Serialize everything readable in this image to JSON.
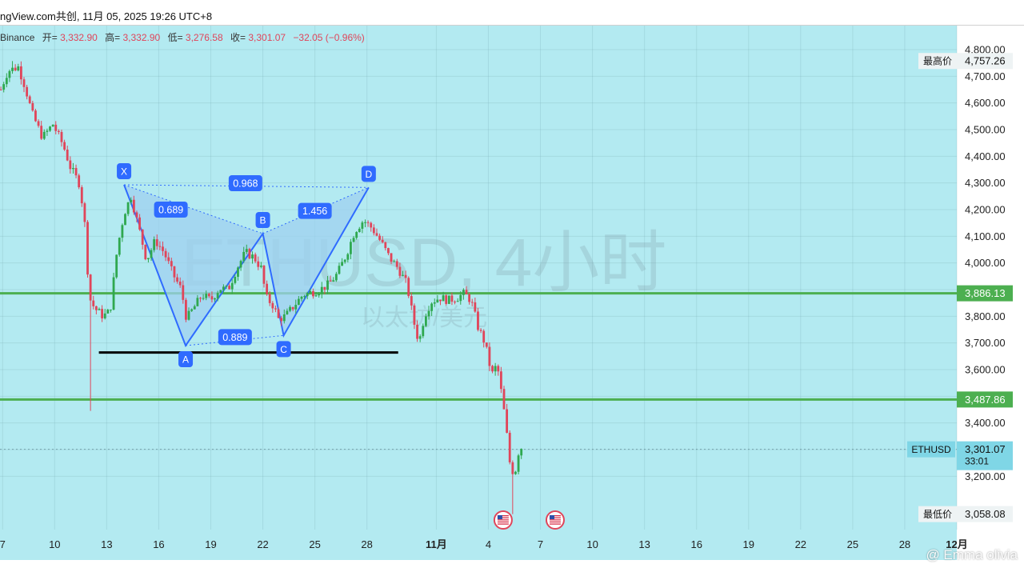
{
  "header": {
    "title": "ngView.com共创, 11月 05, 2025 19:26 UTC+8"
  },
  "colors": {
    "background": "#b3eaf1",
    "up": "#2fa84f",
    "down": "#e0455a",
    "pattern_fill": "#9fd0ef",
    "pattern_line": "#2f6bff",
    "green_line": "#4caf50",
    "black_line": "#000000",
    "label_bg": "#2f6bff"
  },
  "legend": {
    "exchange": "Binance",
    "open_label": "开=",
    "open": "3,332.90",
    "high_label": "高=",
    "high": "3,332.90",
    "low_label": "低=",
    "low": "3,276.58",
    "close_label": "收=",
    "close": "3,301.07",
    "change": "−32.05 (−0.96%)"
  },
  "watermark": {
    "symbol": "ETHUSD, 4小时",
    "name": "以太坊/美元"
  },
  "footer": {
    "handle": "@ Emma olivia"
  },
  "chart_data": {
    "type": "candlestick",
    "symbol": "ETHUSD",
    "interval": "4小时",
    "y_ticks": [
      3200,
      3400,
      3600,
      3700,
      3800,
      4000,
      4100,
      4200,
      4300,
      4400,
      4500,
      4600,
      4700,
      4800
    ],
    "y_tick_labels": [
      "3,200.00",
      "3,400.00",
      "3,600.00",
      "3,700.00",
      "3,800.00",
      "4,000.00",
      "4,100.00",
      "4,200.00",
      "4,300.00",
      "4,400.00",
      "4,500.00",
      "4,600.00",
      "4,700.00",
      "4,800.00"
    ],
    "ylim": [
      3000,
      4890
    ],
    "x_ticks": [
      "7",
      "10",
      "13",
      "16",
      "19",
      "22",
      "25",
      "28",
      "11月",
      "4",
      "7",
      "10",
      "13",
      "16",
      "19",
      "22",
      "25",
      "28",
      "12月"
    ],
    "x_tick_days": [
      7,
      10,
      13,
      16,
      19,
      22,
      25,
      28,
      32,
      35,
      38,
      41,
      44,
      47,
      50,
      53,
      56,
      59,
      62
    ],
    "xlim": [
      6.85,
      62.0
    ],
    "price_labels": [
      {
        "label": "最高价",
        "price": 4757.26,
        "value": "4,757.26",
        "style": "plain"
      },
      {
        "label": "",
        "price": 3886.13,
        "value": "3,886.13",
        "style": "green"
      },
      {
        "label": "",
        "price": 3487.86,
        "value": "3,487.86",
        "style": "green"
      },
      {
        "label": "ETHUSD",
        "price": 3301.07,
        "value": "3,301.07",
        "sub": "33:01",
        "style": "current"
      },
      {
        "label": "最低价",
        "price": 3058.08,
        "value": "3,058.08",
        "style": "plain"
      }
    ],
    "horizontal_lines": [
      {
        "price": 3886.13,
        "color": "green"
      },
      {
        "price": 3487.86,
        "color": "green"
      }
    ],
    "support_segment": {
      "price": 3664,
      "x_start_day": 12.55,
      "x_end_day": 29.8
    },
    "current_price": 3301.07,
    "harmonic_pattern": {
      "points": [
        {
          "name": "X",
          "day": 14.0,
          "price": 4293,
          "label_pos": "above"
        },
        {
          "name": "A",
          "day": 17.55,
          "price": 3690,
          "label_pos": "below"
        },
        {
          "name": "B",
          "day": 22.0,
          "price": 4110,
          "label_pos": "above"
        },
        {
          "name": "C",
          "day": 23.2,
          "price": 3728,
          "label_pos": "below"
        },
        {
          "name": "D",
          "day": 28.1,
          "price": 4283,
          "label_pos": "above"
        }
      ],
      "ratios": [
        {
          "value": "0.689",
          "day": 16.7,
          "price": 4200
        },
        {
          "value": "0.968",
          "day": 21.0,
          "price": 4299
        },
        {
          "value": "1.456",
          "day": 25.0,
          "price": 4195
        },
        {
          "value": "0.889",
          "day": 20.4,
          "price": 3722
        }
      ]
    },
    "events": [
      {
        "day": 35.85,
        "icon": "us-flag"
      },
      {
        "day": 38.85,
        "icon": "us-flag"
      }
    ],
    "anchors": [
      [
        6.9,
        4650
      ],
      [
        7.3,
        4720
      ],
      [
        7.9,
        4735
      ],
      [
        8.3,
        4660
      ],
      [
        8.7,
        4560
      ],
      [
        9.3,
        4470
      ],
      [
        9.9,
        4520
      ],
      [
        10.5,
        4440
      ],
      [
        10.9,
        4360
      ],
      [
        11.4,
        4300
      ],
      [
        11.7,
        4180
      ],
      [
        12.0,
        3870
      ],
      [
        12.3,
        3830
      ],
      [
        12.8,
        3800
      ],
      [
        13.2,
        3820
      ],
      [
        13.6,
        4050
      ],
      [
        14.0,
        4185
      ],
      [
        14.4,
        4250
      ],
      [
        14.8,
        4145
      ],
      [
        15.3,
        4010
      ],
      [
        15.8,
        4085
      ],
      [
        16.3,
        4040
      ],
      [
        16.8,
        3960
      ],
      [
        17.3,
        3900
      ],
      [
        17.6,
        3790
      ],
      [
        18.0,
        3830
      ],
      [
        18.5,
        3880
      ],
      [
        19.0,
        3860
      ],
      [
        19.5,
        3905
      ],
      [
        20.0,
        3900
      ],
      [
        20.5,
        3980
      ],
      [
        21.0,
        4040
      ],
      [
        21.5,
        4020
      ],
      [
        21.9,
        3980
      ],
      [
        22.2,
        3870
      ],
      [
        22.6,
        3840
      ],
      [
        22.9,
        3790
      ],
      [
        23.3,
        3800
      ],
      [
        23.8,
        3840
      ],
      [
        24.3,
        3880
      ],
      [
        24.8,
        3890
      ],
      [
        25.3,
        3900
      ],
      [
        25.8,
        3920
      ],
      [
        26.3,
        3960
      ],
      [
        26.8,
        4030
      ],
      [
        27.3,
        4120
      ],
      [
        27.8,
        4160
      ],
      [
        28.3,
        4130
      ],
      [
        28.8,
        4080
      ],
      [
        29.3,
        4020
      ],
      [
        29.8,
        3980
      ],
      [
        30.3,
        3920
      ],
      [
        30.7,
        3780
      ],
      [
        31.0,
        3700
      ],
      [
        31.3,
        3800
      ],
      [
        31.7,
        3855
      ],
      [
        32.2,
        3870
      ],
      [
        32.7,
        3860
      ],
      [
        33.2,
        3870
      ],
      [
        33.6,
        3885
      ],
      [
        34.0,
        3860
      ],
      [
        34.4,
        3760
      ],
      [
        34.8,
        3700
      ],
      [
        35.2,
        3580
      ],
      [
        35.5,
        3620
      ],
      [
        35.8,
        3490
      ],
      [
        36.0,
        3400
      ],
      [
        36.2,
        3260
      ],
      [
        36.5,
        3200
      ],
      [
        36.8,
        3315
      ],
      [
        37.0,
        3301
      ]
    ],
    "wick_extremes": [
      {
        "day": 7.6,
        "price": 4757
      },
      {
        "day": 12.1,
        "price": 3445
      },
      {
        "day": 36.35,
        "price": 3058
      }
    ]
  }
}
